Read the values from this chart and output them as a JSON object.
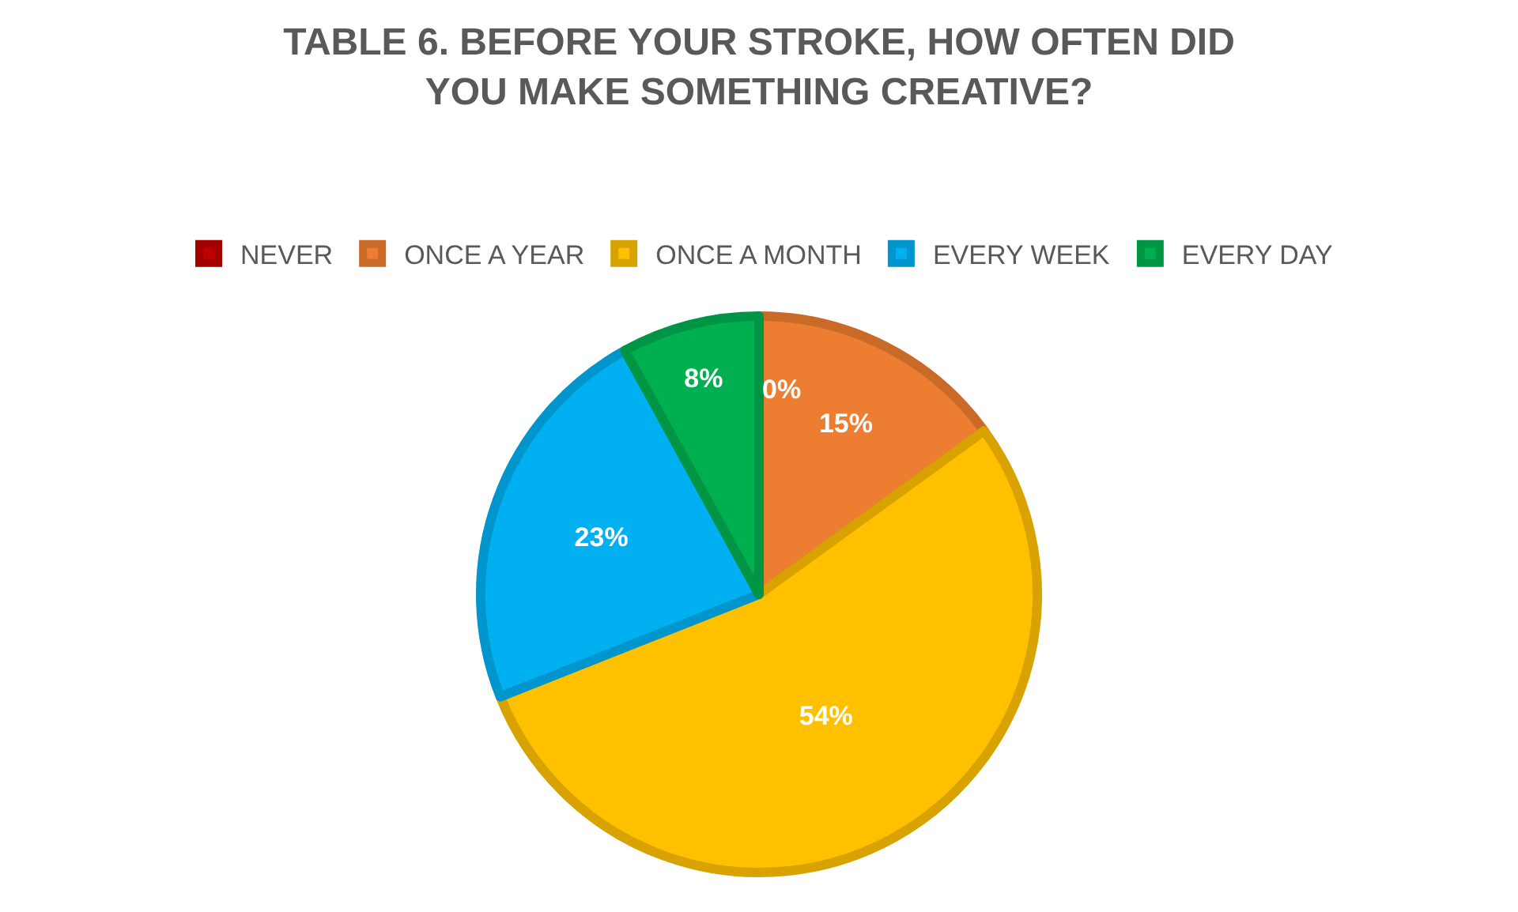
{
  "chart_data": {
    "type": "pie",
    "title": "TABLE 6. BEFORE YOUR STROKE, HOW OFTEN DID\nYOU MAKE SOMETHING CREATIVE?",
    "categories": [
      "NEVER",
      "ONCE A YEAR",
      "ONCE A MONTH",
      "EVERY WEEK",
      "EVERY DAY"
    ],
    "values": [
      0,
      15,
      54,
      23,
      8
    ],
    "value_labels": [
      "0%",
      "15%",
      "54%",
      "23%",
      "8%"
    ],
    "colors": [
      "#c00000",
      "#ed7d31",
      "#ffc000",
      "#00b0f0",
      "#00b050"
    ],
    "legend": "top"
  }
}
